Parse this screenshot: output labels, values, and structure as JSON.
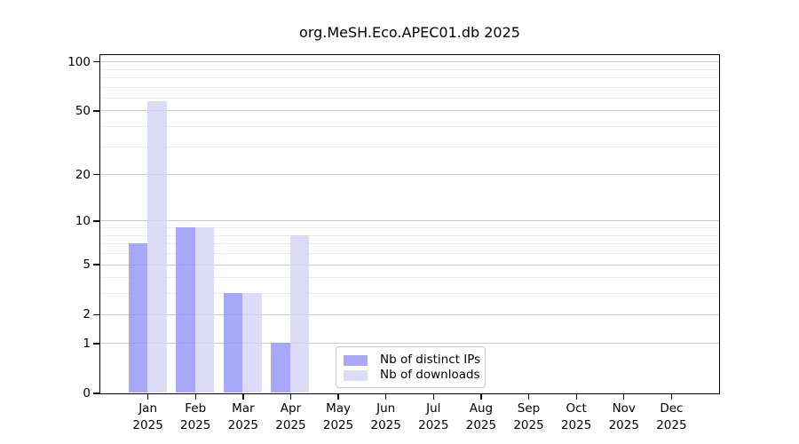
{
  "chart_data": {
    "type": "bar",
    "title": "org.MeSH.Eco.APEC01.db 2025",
    "categories": [
      "Jan",
      "Feb",
      "Mar",
      "Apr",
      "May",
      "Jun",
      "Jul",
      "Aug",
      "Sep",
      "Oct",
      "Nov",
      "Dec"
    ],
    "x_tick_year": "2025",
    "series": [
      {
        "name": "Nb of distinct IPs",
        "color": "#a8a8f0",
        "fill": "rgba(146,146,248,0.8)",
        "values": [
          7,
          9,
          3,
          1,
          0,
          0,
          0,
          0,
          0,
          0,
          0,
          0
        ]
      },
      {
        "name": "Nb of downloads",
        "color": "#dcdcf8",
        "fill": "rgba(211,211,248,0.8)",
        "values": [
          57,
          9,
          3,
          8,
          0,
          0,
          0,
          0,
          0,
          0,
          0,
          0
        ]
      }
    ],
    "y_axis": {
      "scale": "log10(value+1)",
      "ticks": [
        0,
        1,
        2,
        5,
        10,
        20,
        50,
        100
      ],
      "minor_gridlines": [
        3,
        4,
        6,
        7,
        8,
        9,
        30,
        40,
        60,
        70,
        80,
        90
      ],
      "range": [
        0,
        110
      ]
    },
    "grid": {
      "major_color": "#cccccc",
      "minor_color": "#ededed"
    },
    "legend": {
      "position": "inside-bottom-center",
      "items": [
        "Nb of distinct IPs",
        "Nb of downloads"
      ]
    }
  }
}
